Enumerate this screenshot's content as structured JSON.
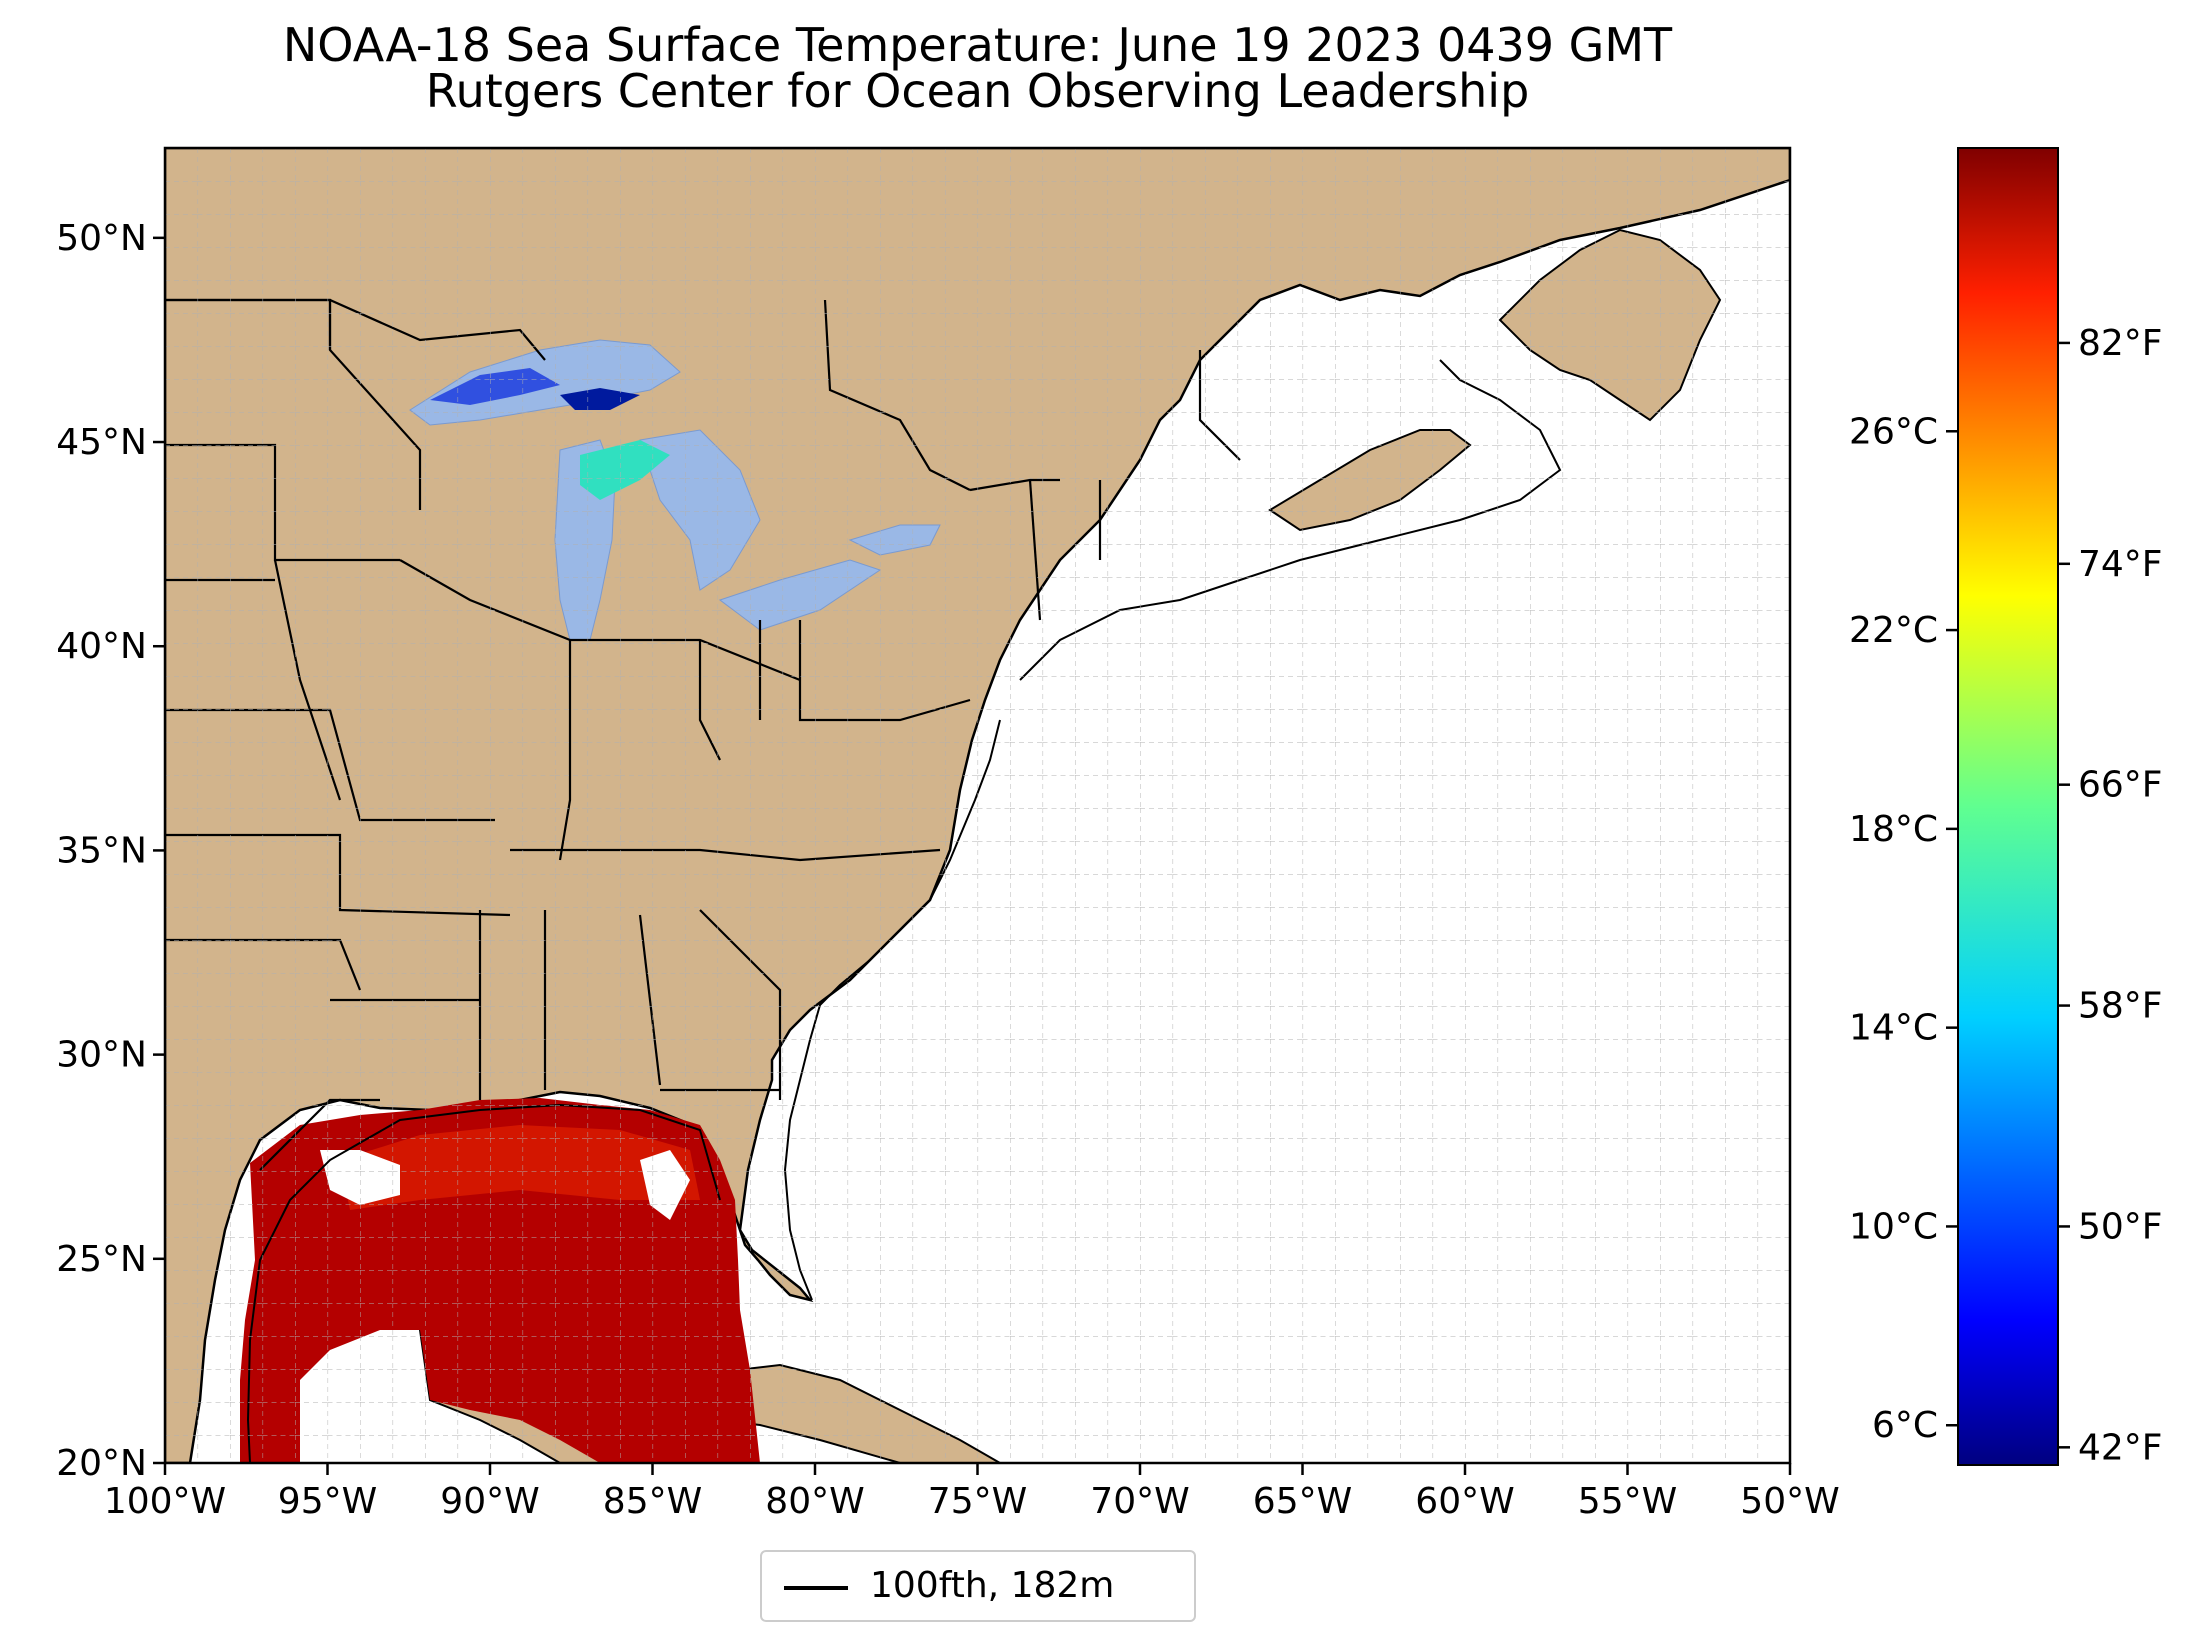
{
  "title": "NOAA-18 Sea Surface Temperature: June 19 2023 0439 GMT",
  "subtitle": "Rutgers Center for Ocean Observing Leadership",
  "legend": {
    "label": "100fth, 182m",
    "color": "#000000"
  },
  "map": {
    "lon_range": [
      -100,
      -50
    ],
    "lat_range": [
      20,
      52.2
    ],
    "lon_ticks": [
      "100°W",
      "95°W",
      "90°W",
      "85°W",
      "80°W",
      "75°W",
      "70°W",
      "65°W",
      "60°W",
      "55°W",
      "50°W"
    ],
    "lat_ticks": [
      "20°N",
      "25°N",
      "30°N",
      "35°N",
      "40°N",
      "45°N",
      "50°N"
    ],
    "land_color": "#d2b48c",
    "lake_color": "#9ab8e6",
    "ocean_color": "#ffffff",
    "grid": true
  },
  "colorbar": {
    "colormap": "jet",
    "celsius_ticks": [
      "6°C",
      "10°C",
      "14°C",
      "18°C",
      "22°C",
      "26°C"
    ],
    "fahrenheit_ticks": [
      "42°F",
      "50°F",
      "58°F",
      "66°F",
      "74°F",
      "82°F"
    ]
  }
}
